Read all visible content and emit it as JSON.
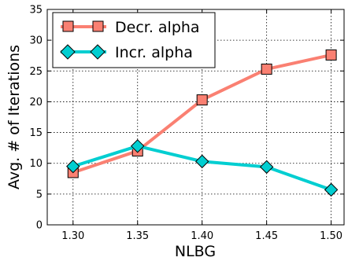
{
  "chart_data": {
    "type": "line",
    "title": "",
    "xlabel": "NLBG",
    "ylabel": "Avg. # of Iterations",
    "x": [
      1.3,
      1.35,
      1.4,
      1.45,
      1.5
    ],
    "xticks": [
      "1.30",
      "1.35",
      "1.40",
      "1.45",
      "1.50"
    ],
    "yticks": [
      "0",
      "5",
      "10",
      "15",
      "20",
      "25",
      "30",
      "35"
    ],
    "xlim": [
      1.28,
      1.51
    ],
    "ylim": [
      0,
      35
    ],
    "grid": true,
    "legend_position": "top-left",
    "series": [
      {
        "name": "Decr. alpha",
        "values": [
          8.5,
          12.0,
          20.3,
          25.3,
          27.6
        ],
        "color": "#fa8072",
        "marker": "square"
      },
      {
        "name": "Incr. alpha",
        "values": [
          9.5,
          12.8,
          10.3,
          9.4,
          5.7
        ],
        "color": "#00ced1",
        "marker": "diamond"
      }
    ]
  }
}
